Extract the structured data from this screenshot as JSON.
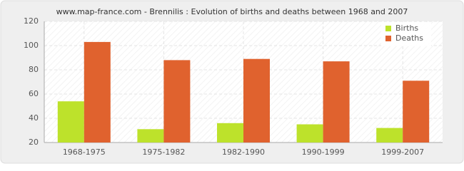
{
  "chart_data": {
    "type": "bar",
    "title": "www.map-france.com - Brennilis : Evolution of births and deaths between 1968 and 2007",
    "categories": [
      "1968-1975",
      "1975-1982",
      "1982-1990",
      "1990-1999",
      "1999-2007"
    ],
    "series": [
      {
        "name": "Births",
        "color": "#bde22b",
        "values": [
          54,
          31,
          36,
          35,
          32
        ]
      },
      {
        "name": "Deaths",
        "color": "#e0622e",
        "values": [
          103,
          88,
          89,
          87,
          71
        ]
      }
    ],
    "ylim": [
      20,
      120
    ],
    "yticks": [
      20,
      40,
      60,
      80,
      100,
      120
    ],
    "grid": true,
    "legend": "top-right"
  }
}
